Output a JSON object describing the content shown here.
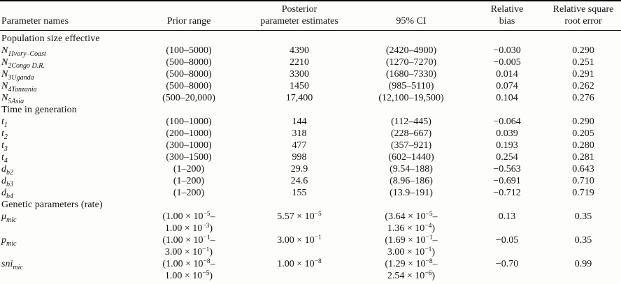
{
  "table": {
    "columns": [
      {
        "line1": "Parameter names"
      },
      {
        "line1": "Prior range"
      },
      {
        "line1": "Posterior",
        "line2": "parameter estimates"
      },
      {
        "line1": "95% CI"
      },
      {
        "line1": "Relative",
        "line2": "bias"
      },
      {
        "line1": "Relative square",
        "line2": "root error"
      }
    ],
    "rows": [
      {
        "type": "section",
        "label": "Population size effective"
      },
      {
        "type": "param",
        "base": "N",
        "sub": "1Ivory–Coast",
        "prior": [
          "(100–5000)"
        ],
        "estimate": [
          "4390"
        ],
        "ci": [
          "(2420–4900)"
        ],
        "bias": "−0.030",
        "error": "0.290"
      },
      {
        "type": "param",
        "base": "N",
        "sub": "2Congo D.R.",
        "prior": [
          "(500–8000)"
        ],
        "estimate": [
          "2210"
        ],
        "ci": [
          "(1270–7270)"
        ],
        "bias": "−0.005",
        "error": "0.251"
      },
      {
        "type": "param",
        "base": "N",
        "sub": "3Uganda",
        "prior": [
          "(500–8000)"
        ],
        "estimate": [
          "3300"
        ],
        "ci": [
          "(1680–7330)"
        ],
        "bias": "0.014",
        "error": "0.291"
      },
      {
        "type": "param",
        "base": "N",
        "sub": "4Tanzania",
        "prior": [
          "(500–8000)"
        ],
        "estimate": [
          "1450"
        ],
        "ci": [
          "(985–5110)"
        ],
        "bias": "0.074",
        "error": "0.262"
      },
      {
        "type": "param",
        "base": "N",
        "sub": "5Asia",
        "prior": [
          "(500–20,000)"
        ],
        "estimate": [
          "17,400"
        ],
        "ci": [
          "(12,100–19,500)"
        ],
        "bias": "0.104",
        "error": "0.276"
      },
      {
        "type": "section",
        "label": "Time in generation"
      },
      {
        "type": "param",
        "base": "t",
        "sub": "1",
        "prior": [
          "(100–1000)"
        ],
        "estimate": [
          "144"
        ],
        "ci": [
          "(112–445)"
        ],
        "bias": "−0.064",
        "error": "0.290"
      },
      {
        "type": "param",
        "base": "t",
        "sub": "2",
        "prior": [
          "(200–1000)"
        ],
        "estimate": [
          "318"
        ],
        "ci": [
          "(228–667)"
        ],
        "bias": "0.039",
        "error": "0.205"
      },
      {
        "type": "param",
        "base": "t",
        "sub": "3",
        "prior": [
          "(300–1000)"
        ],
        "estimate": [
          "477"
        ],
        "ci": [
          "(357–921)"
        ],
        "bias": "0.193",
        "error": "0.280"
      },
      {
        "type": "param",
        "base": "t",
        "sub": "4",
        "prior": [
          "(300–1500)"
        ],
        "estimate": [
          "998"
        ],
        "ci": [
          "(602–1440)"
        ],
        "bias": "0.254",
        "error": "0.281"
      },
      {
        "type": "param",
        "base": "d",
        "sub": "b2",
        "prior": [
          "(1–200)"
        ],
        "estimate": [
          "29.9"
        ],
        "ci": [
          "(9.54–188)"
        ],
        "bias": "−0.563",
        "error": "0.643"
      },
      {
        "type": "param",
        "base": "d",
        "sub": "b3",
        "prior": [
          "(1–200)"
        ],
        "estimate": [
          "24.6"
        ],
        "ci": [
          "(8.96–186)"
        ],
        "bias": "−0.691",
        "error": "0.710"
      },
      {
        "type": "param",
        "base": "d",
        "sub": "b4",
        "prior": [
          "(1–200)"
        ],
        "estimate": [
          "155"
        ],
        "ci": [
          "(13.9–191)"
        ],
        "bias": "−0.712",
        "error": "0.719"
      },
      {
        "type": "section",
        "label": "Genetic parameters (rate)"
      },
      {
        "type": "param",
        "base": "μ",
        "sub": "mic",
        "prior": [
          "(1.00 × 10⁻⁵–",
          "1.00 × 10⁻³)"
        ],
        "estimate": [
          "5.57 × 10⁻⁵"
        ],
        "ci": [
          "(3.64 × 10⁻⁵–",
          "1.36 × 10⁻⁴)"
        ],
        "bias": "0.13",
        "error": "0.35"
      },
      {
        "type": "param",
        "base": "p",
        "sub": "mic",
        "prior": [
          "(1.00 × 10⁻¹–",
          "3.00 × 10⁻¹)"
        ],
        "estimate": [
          "3.00 × 10⁻¹"
        ],
        "ci": [
          "(1.69 × 10⁻¹–",
          "3.00 × 10⁻¹)"
        ],
        "bias": "−0.05",
        "error": "0.35"
      },
      {
        "type": "param",
        "base": "sni",
        "sub": "mic",
        "prior": [
          "(1.00 × 10⁻⁸–",
          "1.00 × 10⁻⁵)"
        ],
        "estimate": [
          "1.00 × 10⁻⁸"
        ],
        "ci": [
          "(1.29 × 10⁻⁸–",
          "2.54 × 10⁻⁶)"
        ],
        "bias": "−0.70",
        "error": "0.99"
      }
    ]
  }
}
